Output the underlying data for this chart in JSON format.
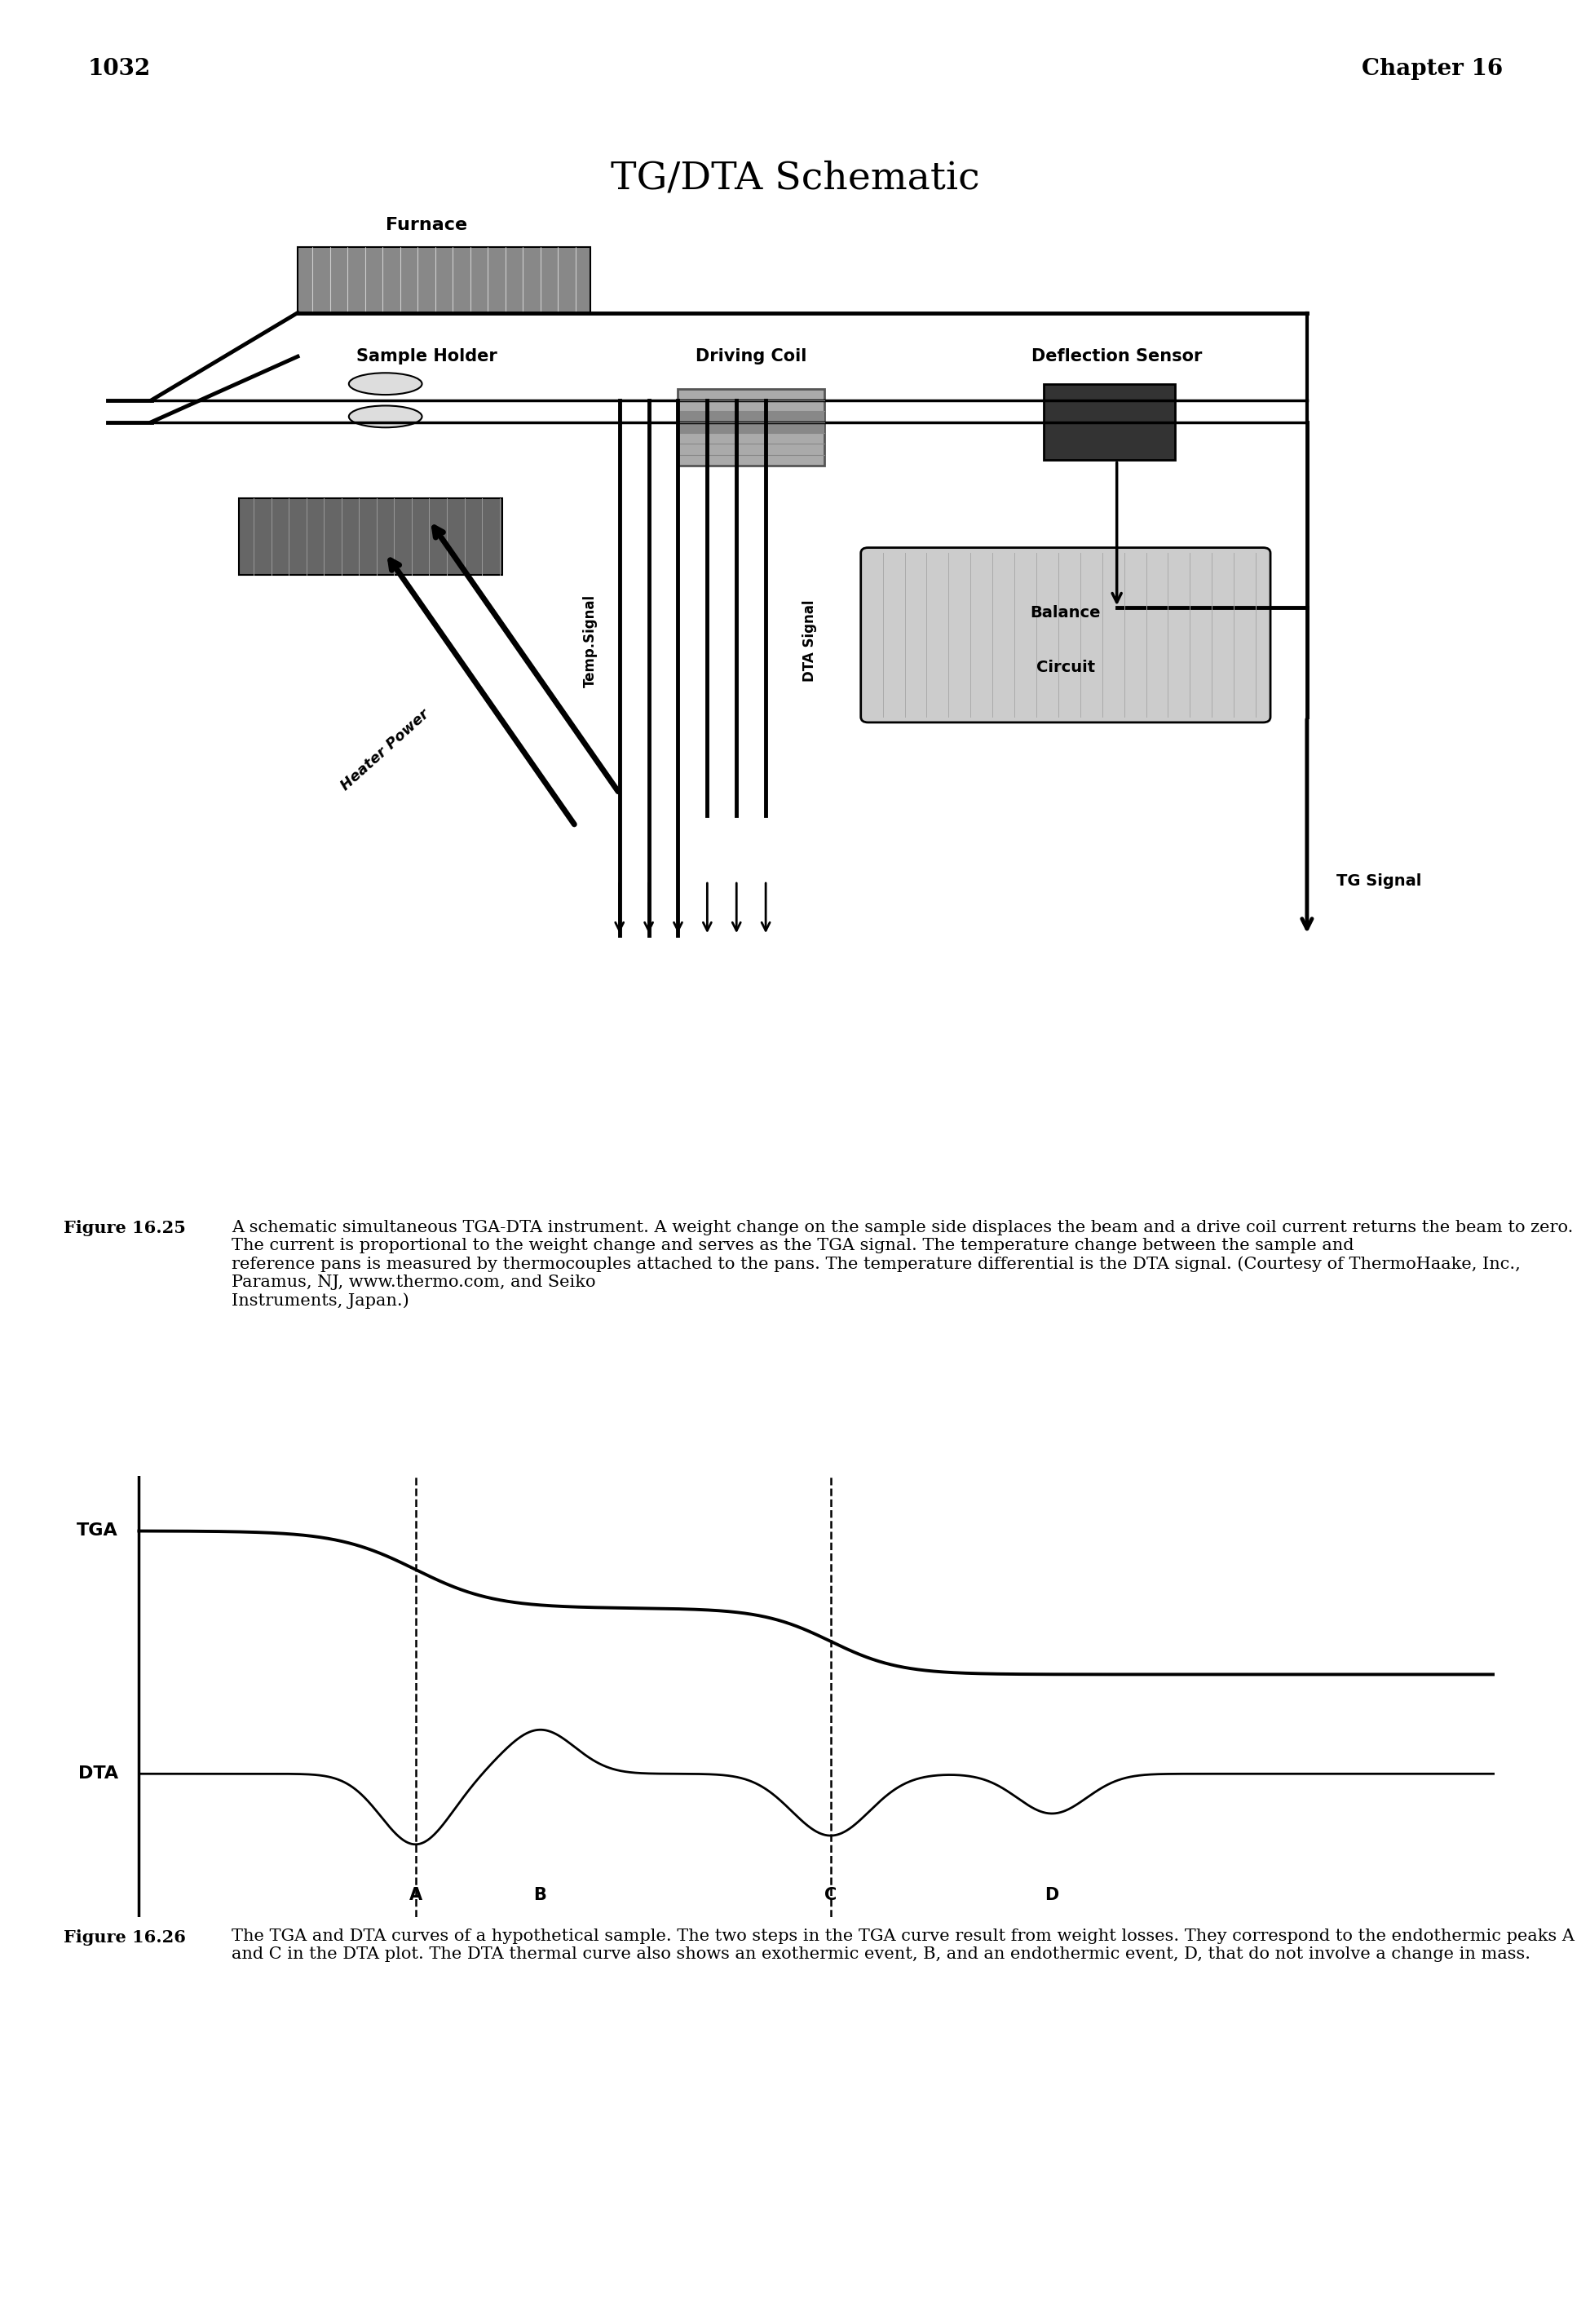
{
  "page_number": "1032",
  "chapter": "Chapter 16",
  "title": "TG/DTA Schematic",
  "background_color": "#ffffff",
  "text_color": "#000000",
  "furnace_color": "#888888",
  "coil_color": "#aaaaaa",
  "deflection_color": "#333333",
  "balance_color": "#cccccc",
  "ref_color": "#666666",
  "caption25_bold": "Figure 16.25",
  "caption25_text": "   A schematic simultaneous TGA-DTA instrument. A weight change on the sample side displaces the beam and a drive coil current returns the beam to zero. The current is proportional to the weight change and serves as the TGA signal. The temperature change between the sample and reference pans is measured by thermocouples attached to the pans. The temperature differential is the DTA signal. (Courtesy of ThermoHaake, Inc., Paramus, NJ, www.thermo.com, and Seiko Instruments, Japan.)",
  "caption26_bold": "Figure 16.26",
  "caption26_text": "   The TGA and DTA curves of a hypothetical sample. The two steps in the TGA curve result from weight losses. They correspond to the endothermic peaks A and C in the DTA plot. The DTA thermal curve also shows an exothermic event, B, and an endothermic event, D, that do not involve a change in mass."
}
